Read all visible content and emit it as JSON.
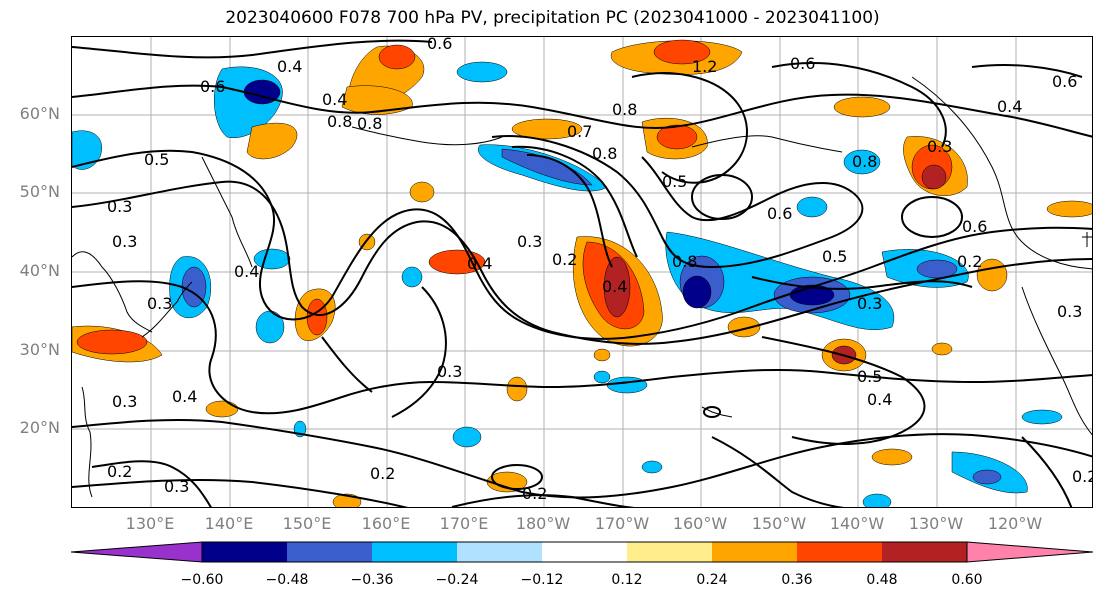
{
  "title": "2023040600 F078 700 hPa PV, precipitation PC (2023041000 - 2023041100)",
  "lat_labels": [
    "60°N",
    "50°N",
    "40°N",
    "30°N",
    "20°N"
  ],
  "lon_labels": [
    "130°E",
    "140°E",
    "150°E",
    "160°E",
    "170°E",
    "180°W",
    "170°W",
    "160°W",
    "150°W",
    "140°W",
    "130°W",
    "120°W"
  ],
  "contour_labels": [
    "0.6",
    "0.4",
    "0.6",
    "0.8",
    "0.4",
    "0.5",
    "0.8",
    "0.7",
    "0.8",
    "1.2",
    "0.6",
    "0.4",
    "0.6",
    "0.8",
    "0.5",
    "0.8",
    "0.3",
    "0.6",
    "0.6",
    "0.5",
    "0.8",
    "0.4",
    "0.3",
    "0.3",
    "0.4",
    "0.3",
    "0.3",
    "0.2",
    "0.4",
    "0.3",
    "0.3",
    "0.2",
    "0.2",
    "0.5",
    "0.4",
    "0.2",
    "0.2",
    "0.3",
    "0.3",
    "0.2",
    "0.3",
    "0.4"
  ],
  "colorbar": {
    "tick_labels": [
      "−0.60",
      "−0.48",
      "−0.36",
      "−0.24",
      "−0.12",
      "0.12",
      "0.24",
      "0.36",
      "0.48",
      "0.60"
    ],
    "colors": [
      "#9932cc",
      "#00008b",
      "#3a5fcd",
      "#00bfff",
      "#b0e2ff",
      "#ffffff",
      "#ffec8b",
      "#ffa500",
      "#ff4500",
      "#b22222",
      "#ff82ab"
    ]
  },
  "fill_colors": {
    "neg_strong": "#00008b",
    "neg_mid": "#3a5fcd",
    "neg": "#00bfff",
    "neg_weak": "#b0e2ff",
    "pos_weak": "#ffec8b",
    "pos": "#ffa500",
    "pos_mid": "#ff4500",
    "pos_strong": "#b22222"
  }
}
